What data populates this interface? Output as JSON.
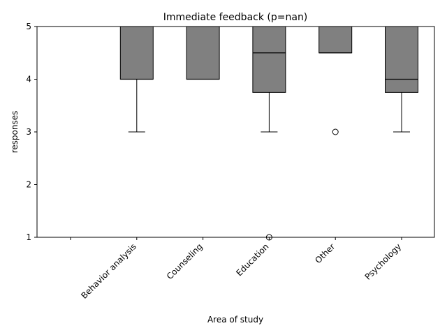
{
  "chart_data": {
    "type": "box",
    "title": "Immediate feedback (p=nan)",
    "xlabel": "Area of study",
    "ylabel": "responses",
    "ylim": [
      1,
      5
    ],
    "yticks": [
      1,
      2,
      3,
      4,
      5
    ],
    "categories": [
      "",
      "Behavior analysis",
      "Counseling",
      "Education",
      "Other",
      "Psychology"
    ],
    "box_color": "#808080",
    "line_color": "#000000",
    "boxes": [
      null,
      {
        "q1": 4,
        "median": 4,
        "q3": 5,
        "whisker_low": 3,
        "whisker_high": 5,
        "outliers": []
      },
      {
        "q1": 4,
        "median": 4,
        "q3": 5,
        "whisker_low": 4,
        "whisker_high": 5,
        "outliers": []
      },
      {
        "q1": 3.75,
        "median": 4.5,
        "q3": 5,
        "whisker_low": 3,
        "whisker_high": 5,
        "outliers": [
          1
        ]
      },
      {
        "q1": 4.5,
        "median": 4.5,
        "q3": 5,
        "whisker_low": 4.5,
        "whisker_high": 5,
        "outliers": [
          3
        ]
      },
      {
        "q1": 3.75,
        "median": 4,
        "q3": 5,
        "whisker_low": 3,
        "whisker_high": 5,
        "outliers": []
      }
    ],
    "grid": false,
    "legend": "none"
  }
}
